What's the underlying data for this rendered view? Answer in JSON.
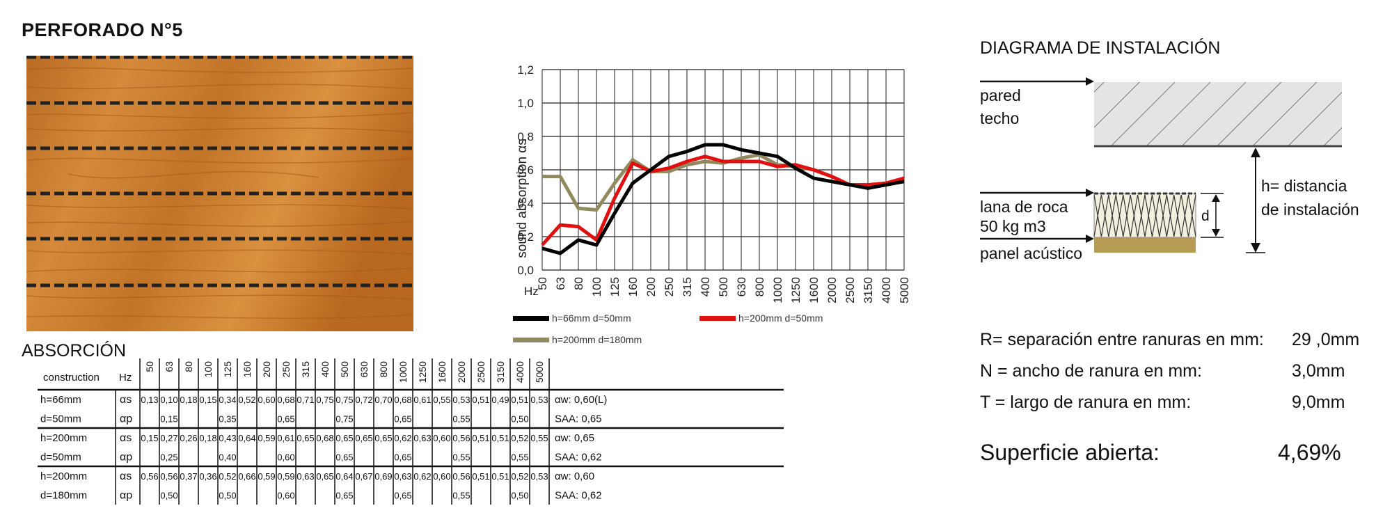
{
  "title": "PERFORADO N°5",
  "chart_data": {
    "type": "line",
    "x_unit": "Hz",
    "ylabel": "sound absorption  αs",
    "ylim": [
      0,
      1.2
    ],
    "y_ticks": [
      "0,0",
      "0,2",
      "0,4",
      "0,6",
      "0,8",
      "1,0",
      "1,2"
    ],
    "categories": [
      "50",
      "63",
      "80",
      "100",
      "125",
      "160",
      "200",
      "250",
      "315",
      "400",
      "500",
      "630",
      "800",
      "1000",
      "1250",
      "1600",
      "2000",
      "2500",
      "3150",
      "4000",
      "5000"
    ],
    "series": [
      {
        "name": "h=66mm d=50mm",
        "color": "#000000",
        "values": [
          0.13,
          0.1,
          0.18,
          0.15,
          0.34,
          0.52,
          0.6,
          0.68,
          0.71,
          0.75,
          0.75,
          0.72,
          0.7,
          0.68,
          0.61,
          0.55,
          0.53,
          0.51,
          0.49,
          0.51,
          0.53
        ]
      },
      {
        "name": "h=200mm d=50mm",
        "color": "#e01010",
        "values": [
          0.15,
          0.27,
          0.26,
          0.18,
          0.43,
          0.64,
          0.59,
          0.61,
          0.65,
          0.68,
          0.65,
          0.65,
          0.65,
          0.62,
          0.63,
          0.6,
          0.56,
          0.51,
          0.51,
          0.52,
          0.55
        ]
      },
      {
        "name": "h=200mm d=180mm",
        "color": "#908a5e",
        "values": [
          0.56,
          0.56,
          0.37,
          0.36,
          0.52,
          0.66,
          0.59,
          0.59,
          0.63,
          0.65,
          0.64,
          0.67,
          0.69,
          0.63,
          0.62,
          0.6,
          0.56,
          0.51,
          0.51,
          0.52,
          0.53
        ]
      }
    ]
  },
  "absorption": {
    "title": "ABSORCIÓN",
    "construction_label": "construction",
    "hz_label": "Hz",
    "frequencies": [
      "50",
      "63",
      "80",
      "100",
      "125",
      "160",
      "200",
      "250",
      "315",
      "400",
      "500",
      "630",
      "800",
      "1000",
      "1250",
      "1600",
      "2000",
      "2500",
      "3150",
      "4000",
      "5000"
    ],
    "groups": [
      {
        "h": "h=66mm",
        "d": "d=50mm",
        "as": [
          "0,13",
          "0,10",
          "0,18",
          "0,15",
          "0,34",
          "0,52",
          "0,60",
          "0,68",
          "0,71",
          "0,75",
          "0,75",
          "0,72",
          "0,70",
          "0,68",
          "0,61",
          "0,55",
          "0,53",
          "0,51",
          "0,49",
          "0,51",
          "0,53"
        ],
        "ap": [
          "",
          "0,15",
          "",
          "",
          "0,35",
          "",
          "",
          "0,65",
          "",
          "",
          "0,75",
          "",
          "",
          "0,65",
          "",
          "",
          "0,55",
          "",
          "",
          "0,50",
          ""
        ],
        "aw": "αw: 0,60(L)",
        "saa": "SAA: 0,65"
      },
      {
        "h": "h=200mm",
        "d": "d=50mm",
        "as": [
          "0,15",
          "0,27",
          "0,26",
          "0,18",
          "0,43",
          "0,64",
          "0,59",
          "0,61",
          "0,65",
          "0,68",
          "0,65",
          "0,65",
          "0,65",
          "0,62",
          "0,63",
          "0,60",
          "0,56",
          "0,51",
          "0,51",
          "0,52",
          "0,55"
        ],
        "ap": [
          "",
          "0,25",
          "",
          "",
          "0,40",
          "",
          "",
          "0,60",
          "",
          "",
          "0,65",
          "",
          "",
          "0,65",
          "",
          "",
          "0,55",
          "",
          "",
          "0,55",
          ""
        ],
        "aw": "αw: 0,65",
        "saa": "SAA: 0,62"
      },
      {
        "h": "h=200mm",
        "d": "d=180mm",
        "as": [
          "0,56",
          "0,56",
          "0,37",
          "0,36",
          "0,52",
          "0,66",
          "0,59",
          "0,59",
          "0,63",
          "0,65",
          "0,64",
          "0,67",
          "0,69",
          "0,63",
          "0,62",
          "0,60",
          "0,56",
          "0,51",
          "0,51",
          "0,52",
          "0,53"
        ],
        "ap": [
          "",
          "0,50",
          "",
          "",
          "0,50",
          "",
          "",
          "0,60",
          "",
          "",
          "0,65",
          "",
          "",
          "0,65",
          "",
          "",
          "0,55",
          "",
          "",
          "0,50",
          ""
        ],
        "aw": "αw: 0,60",
        "saa": "SAA: 0,62"
      }
    ],
    "as_label": "αs",
    "ap_label": "αp"
  },
  "diagram": {
    "title": "DIAGRAMA DE INSTALACIÓN",
    "wall_label_1": "pared",
    "wall_label_2": "techo",
    "wool_label_1": "lana de roca",
    "wool_label_2": "50 kg m3",
    "panel_label": "panel acústico",
    "d_label": "d",
    "h_label_1": "h=  distancia",
    "h_label_2": "de instalación",
    "colors": {
      "ceiling": "#e4e4e4",
      "panel": "#b69b55",
      "wool": "#f3f0e0"
    }
  },
  "specs": [
    {
      "label": "R=  separación entre ranuras en mm:",
      "value": "29 ,0mm"
    },
    {
      "label": "N =  ancho de ranura en mm:",
      "value": "3,0mm"
    },
    {
      "label": "T =  largo de ranura en mm:",
      "value": "9,0mm"
    }
  ],
  "open_area": {
    "label": "Superficie abierta:",
    "value": "4,69%"
  }
}
